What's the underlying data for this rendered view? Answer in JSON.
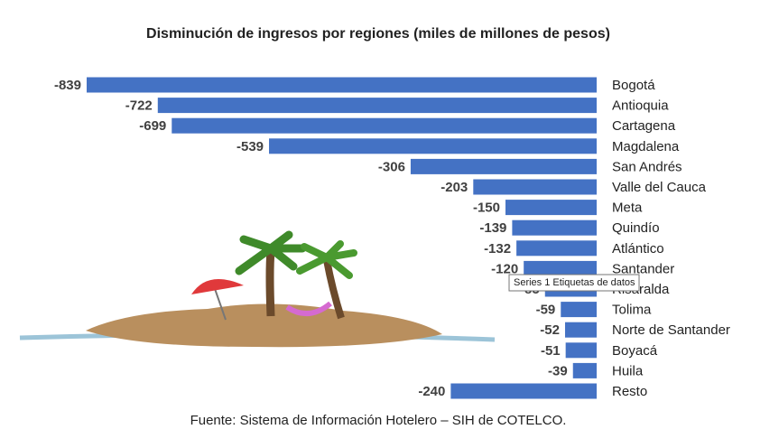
{
  "chart_data": {
    "type": "bar",
    "orientation": "horizontal",
    "title": "Disminución de ingresos por regiones (miles de millones de pesos)",
    "source": "Fuente: Sistema de Información Hotelero – SIH de COTELCO.",
    "tooltip": "Series 1 Etiquetas de datos",
    "categories": [
      "Bogotá",
      "Antioquia",
      "Cartagena",
      "Magdalena",
      "San Andrés",
      "Valle del Cauca",
      "Meta",
      "Quindío",
      "Atlántico",
      "Santander",
      "Risaralda",
      "Tolima",
      "Norte de Santander",
      "Boyacá",
      "Huila",
      "Resto"
    ],
    "values": [
      -839,
      -722,
      -699,
      -539,
      -306,
      -203,
      -150,
      -139,
      -132,
      -120,
      -85,
      -59,
      -52,
      -51,
      -39,
      -240
    ],
    "color": "#4472c4",
    "xlim": [
      -839,
      0
    ]
  }
}
